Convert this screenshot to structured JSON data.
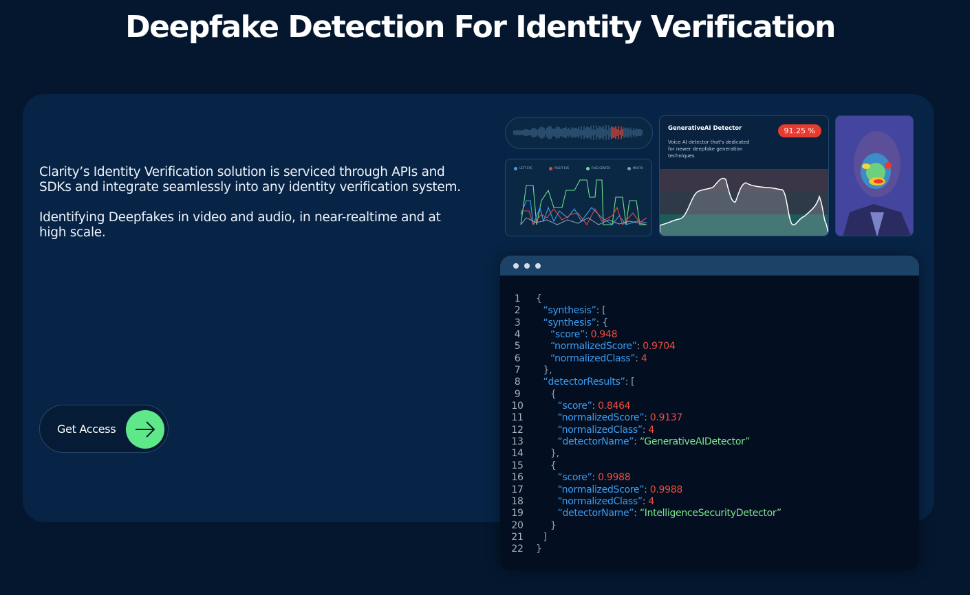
{
  "title": "Deepfake Detection For Identity Verification",
  "description": [
    "Clarity’s Identity Verification solution is serviced through APIs and SDKs and integrate seamlessly into any identity verification system.",
    "Identifying Deepfakes in video and audio, in near-realtime and at high scale."
  ],
  "cta": {
    "label": "Get Access",
    "icon": "arrow-right-icon",
    "color": "#5ee88a"
  },
  "illustration": {
    "legend": [
      "LEFT EYE",
      "RIGHT EYE",
      "FACE CENTER",
      "MOUTH"
    ],
    "legend_colors": [
      "#3aa0f0",
      "#e8463a",
      "#6fe08a",
      "#8c9aab"
    ],
    "detector": {
      "title": "GenerativeAI Detector",
      "description": "Voice AI detector that's dedicated for newer deepfake generation techniques",
      "score": "91.25 %"
    }
  },
  "code": {
    "lines": [
      [
        [
          "p",
          "{"
        ]
      ],
      [
        [
          "k",
          "“synthesis”"
        ],
        [
          "p",
          ": ["
        ]
      ],
      [
        [
          "k",
          "“synthesis”"
        ],
        [
          "p",
          ": {"
        ]
      ],
      [
        [
          "k",
          "“score”"
        ],
        [
          "p",
          ": "
        ],
        [
          "n",
          "0.948"
        ]
      ],
      [
        [
          "k",
          "“normalizedScore”"
        ],
        [
          "p",
          ": "
        ],
        [
          "n",
          "0.9704"
        ]
      ],
      [
        [
          "k",
          "“normalizedClass”"
        ],
        [
          "p",
          ": "
        ],
        [
          "n",
          "4"
        ]
      ],
      [
        [
          "p",
          "},"
        ]
      ],
      [
        [
          "k",
          "“detectorResults”"
        ],
        [
          "p",
          ": ["
        ]
      ],
      [
        [
          "p",
          "{"
        ]
      ],
      [
        [
          "k",
          "“score”"
        ],
        [
          "p",
          ": "
        ],
        [
          "n",
          "0.8464"
        ]
      ],
      [
        [
          "k",
          "“normalizedScore”"
        ],
        [
          "p",
          ": "
        ],
        [
          "n",
          "0.9137"
        ]
      ],
      [
        [
          "k",
          "“normalizedClass”"
        ],
        [
          "p",
          ": "
        ],
        [
          "n",
          "4"
        ]
      ],
      [
        [
          "k",
          "“detectorName”"
        ],
        [
          "p",
          ": "
        ],
        [
          "s",
          "“GenerativeAIDetector”"
        ]
      ],
      [
        [
          "p",
          "},"
        ]
      ],
      [
        [
          "p",
          "{"
        ]
      ],
      [
        [
          "k",
          "“score”"
        ],
        [
          "p",
          ": "
        ],
        [
          "n",
          "0.9988"
        ]
      ],
      [
        [
          "k",
          "“normalizedScore”"
        ],
        [
          "p",
          ": "
        ],
        [
          "n",
          "0.9988"
        ]
      ],
      [
        [
          "k",
          "“normalizedClass”"
        ],
        [
          "p",
          ": "
        ],
        [
          "n",
          "4"
        ]
      ],
      [
        [
          "k",
          "“detectorName”"
        ],
        [
          "p",
          ": "
        ],
        [
          "s",
          "“IntelligenceSecurityDetector”"
        ]
      ],
      [
        [
          "p",
          "}"
        ]
      ],
      [
        [
          "p",
          "]"
        ]
      ],
      [
        [
          "p",
          "}"
        ]
      ]
    ]
  }
}
